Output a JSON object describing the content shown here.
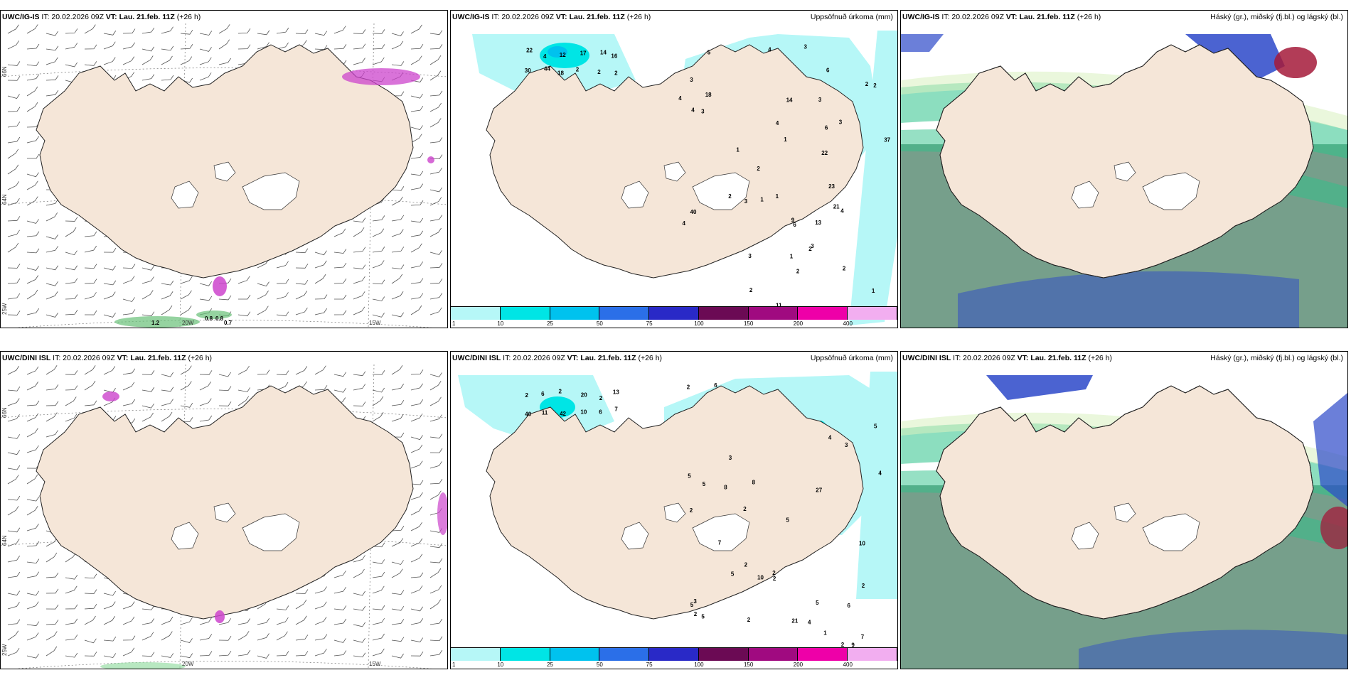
{
  "panels": [
    {
      "id": "wind-ig",
      "title_prefix": "UWC/IG-IS",
      "title_it": "IT: 20.02.2026 09Z",
      "title_vt": "VT: Lau. 21.feb. 11Z",
      "title_tail": "(+26 h)",
      "right_label": "",
      "lat_labels": [
        "66N",
        "64N",
        "25W"
      ],
      "lon_labels": [
        "20W",
        "15W"
      ],
      "values": [
        "1.2",
        "0.8",
        "0.8",
        "0.7"
      ]
    },
    {
      "id": "precip-ig",
      "title_prefix": "UWC/IG-IS",
      "title_it": "IT: 20.02.2026 09Z",
      "title_vt": "VT: Lau. 21.feb. 11Z",
      "title_tail": "(+26 h)",
      "right_label": "Uppsöfnuð úrkoma (mm)",
      "values": [
        "22",
        "4",
        "12",
        "17",
        "14",
        "16",
        "30",
        "44",
        "18",
        "2",
        "2",
        "2",
        "3",
        "4",
        "2",
        "2",
        "3",
        "1",
        "4",
        "3",
        "13",
        "11",
        "4",
        "22",
        "18",
        "37",
        "1",
        "3",
        "3",
        "23",
        "21",
        "3",
        "1",
        "2",
        "2",
        "1",
        "4",
        "14",
        "6",
        "2",
        "2",
        "4",
        "9",
        "4",
        "1",
        "5",
        "3",
        "3",
        "40",
        "2",
        "6",
        "2",
        "1",
        "6"
      ]
    },
    {
      "id": "cloud-ig",
      "title_prefix": "UWC/IG-IS",
      "title_it": "IT: 20.02.2026 09Z",
      "title_vt": "VT: Lau. 21.feb. 11Z",
      "title_tail": "(+26 h)",
      "right_label": "Háský (gr.), miðský (fj.bl.) og lágský (bl.)"
    },
    {
      "id": "wind-dini",
      "title_prefix": "UWC/DINI ISL",
      "title_it": "IT: 20.02.2026 09Z",
      "title_vt": "VT: Lau. 21.feb. 11Z",
      "title_tail": "(+26 h)",
      "right_label": "",
      "lat_labels": [
        "66N",
        "64N",
        "25W"
      ],
      "lon_labels": [
        "20W",
        "15W"
      ]
    },
    {
      "id": "precip-dini",
      "title_prefix": "UWC/DINI ISL",
      "title_it": "IT: 20.02.2026 09Z",
      "title_vt": "VT: Lau. 21.feb. 11Z",
      "title_tail": "(+26 h)",
      "right_label": "Uppsöfnuð úrkoma (mm)",
      "values": [
        "2",
        "6",
        "2",
        "20",
        "2",
        "13",
        "40",
        "11",
        "42",
        "10",
        "6",
        "7",
        "2",
        "2",
        "2",
        "5",
        "5",
        "4",
        "5",
        "8",
        "9",
        "8",
        "4",
        "5",
        "6",
        "27",
        "21",
        "3",
        "3",
        "5",
        "2",
        "10",
        "5",
        "2",
        "4",
        "5",
        "5",
        "6",
        "7",
        "2",
        "2",
        "7",
        "10",
        "1",
        "2",
        "2",
        "2",
        "3"
      ]
    },
    {
      "id": "cloud-dini",
      "title_prefix": "UWC/DINI ISL",
      "title_it": "IT: 20.02.2026 09Z",
      "title_vt": "VT: Lau. 21.feb. 11Z",
      "title_tail": "(+26 h)",
      "right_label": "Háský (gr.), miðský (fj.bl.) og lágský (bl.)"
    }
  ],
  "colorbar": {
    "labels": [
      "1",
      "10",
      "25",
      "50",
      "75",
      "100",
      "150",
      "200",
      "400"
    ],
    "colors": [
      "#b6f7f7",
      "#00e5e5",
      "#00c2ee",
      "#2b6fe8",
      "#2929c7",
      "#6b0a54",
      "#a00a80",
      "#ee00a8",
      "#f2aef0"
    ]
  },
  "colors": {
    "land": "#f5e6d8",
    "ice": "#ffffff",
    "sea": "#ffffff",
    "green": "#2ec28a",
    "blue": "#2c48c9",
    "dark": "#5e8e77",
    "red": "#a41a3a",
    "magenta": "#cc44cc"
  }
}
